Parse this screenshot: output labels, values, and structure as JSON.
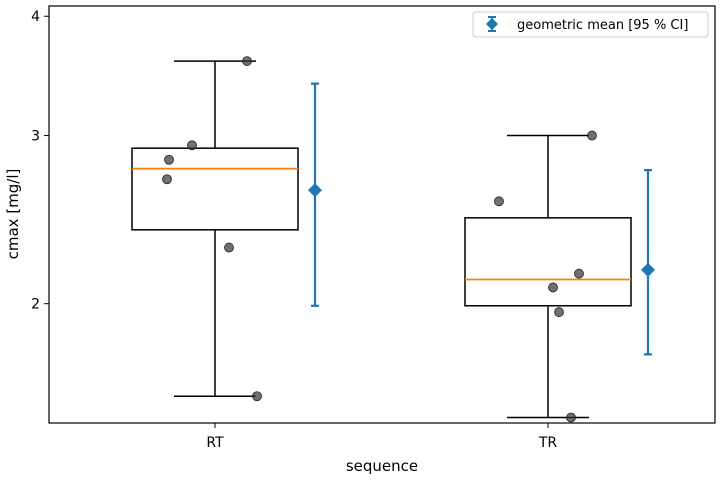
{
  "chart_data": {
    "type": "box",
    "xlabel": "sequence",
    "ylabel": "cmax [mg/l]",
    "y_scale": "log",
    "ylim": [
      1.5,
      4.1
    ],
    "yticks": [
      2,
      3,
      4
    ],
    "ytick_labels": [
      "2",
      "3",
      "4"
    ],
    "categories": [
      "RT",
      "TR"
    ],
    "boxes": [
      {
        "category": "RT",
        "whisker_low": 1.6,
        "q1": 2.39,
        "median": 2.77,
        "q3": 2.91,
        "whisker_high": 3.59
      },
      {
        "category": "TR",
        "whisker_low": 1.52,
        "q1": 1.99,
        "median": 2.12,
        "q3": 2.46,
        "whisker_high": 3.0
      }
    ],
    "points": [
      {
        "category": "RT",
        "values": [
          3.59,
          2.93,
          2.83,
          2.7,
          2.29,
          1.6
        ]
      },
      {
        "category": "TR",
        "values": [
          3.0,
          2.56,
          2.15,
          2.08,
          1.96,
          1.52
        ]
      }
    ],
    "geometric_mean": [
      {
        "category": "RT",
        "value": 2.63,
        "ci_low": 1.99,
        "ci_high": 3.4
      },
      {
        "category": "TR",
        "value": 2.17,
        "ci_low": 1.77,
        "ci_high": 2.76
      }
    ],
    "legend": {
      "label": "geometric mean [95 % CI]",
      "placement": "top-right"
    },
    "colors": {
      "median": "#ff7f0e",
      "mean": "#1f77b4",
      "points": "#333333",
      "box": "#000000"
    }
  }
}
